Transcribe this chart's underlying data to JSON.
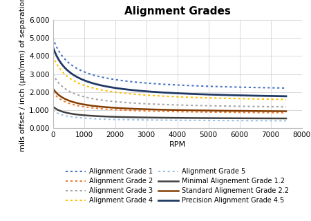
{
  "title": "Alignment Grades",
  "xlabel": "RPM",
  "ylabel": "mils offset / inch (μm/mm) of separation",
  "xlim": [
    0,
    8000
  ],
  "ylim": [
    0.0,
    6.0
  ],
  "xticks": [
    0,
    1000,
    2000,
    3000,
    4000,
    5000,
    6000,
    7000,
    8000
  ],
  "yticks": [
    0.0,
    1.0,
    2.0,
    3.0,
    4.0,
    5.0,
    6.0
  ],
  "ytick_labels": [
    "0.000",
    "1.000",
    "2.000",
    "3.000",
    "4.000",
    "5.000",
    "6.000"
  ],
  "series": [
    {
      "name": "Alignment Grade 1",
      "color": "#4472C4",
      "linestyle": "dotted",
      "linewidth": 1.5,
      "start_val": 5.0,
      "end_val": 2.0,
      "scale": 600
    },
    {
      "name": "Alignment Grade 2",
      "color": "#ED7D31",
      "linestyle": "dotted",
      "linewidth": 1.5,
      "start_val": 2.0,
      "end_val": 0.78,
      "scale": 500
    },
    {
      "name": "Alignment Grade 3",
      "color": "#A5A5A5",
      "linestyle": "dotted",
      "linewidth": 1.5,
      "start_val": 3.0,
      "end_val": 1.05,
      "scale": 550
    },
    {
      "name": "Alignment Grade 4",
      "color": "#FFC000",
      "linestyle": "dotted",
      "linewidth": 1.5,
      "start_val": 4.0,
      "end_val": 1.4,
      "scale": 600
    },
    {
      "name": "Alignment Grade 5",
      "color": "#9DC3E6",
      "linestyle": "dotted",
      "linewidth": 1.5,
      "start_val": 1.0,
      "end_val": 0.38,
      "scale": 400
    },
    {
      "name": "Minimal Alignement Grade 1.2",
      "color": "#404040",
      "linestyle": "solid",
      "linewidth": 1.8,
      "start_val": 1.2,
      "end_val": 0.5,
      "scale": 450
    },
    {
      "name": "Standard Alignement Grade 2.2",
      "color": "#833C00",
      "linestyle": "solid",
      "linewidth": 1.8,
      "start_val": 2.2,
      "end_val": 0.85,
      "scale": 520
    },
    {
      "name": "Precision Alignment Grade 4.5",
      "color": "#1F3864",
      "linestyle": "solid",
      "linewidth": 2.0,
      "start_val": 4.5,
      "end_val": 1.55,
      "scale": 600
    }
  ],
  "background_color": "#FFFFFF",
  "grid_color": "#D9D9D9",
  "title_fontsize": 11,
  "axis_fontsize": 8,
  "tick_fontsize": 7.5,
  "legend_fontsize": 7
}
